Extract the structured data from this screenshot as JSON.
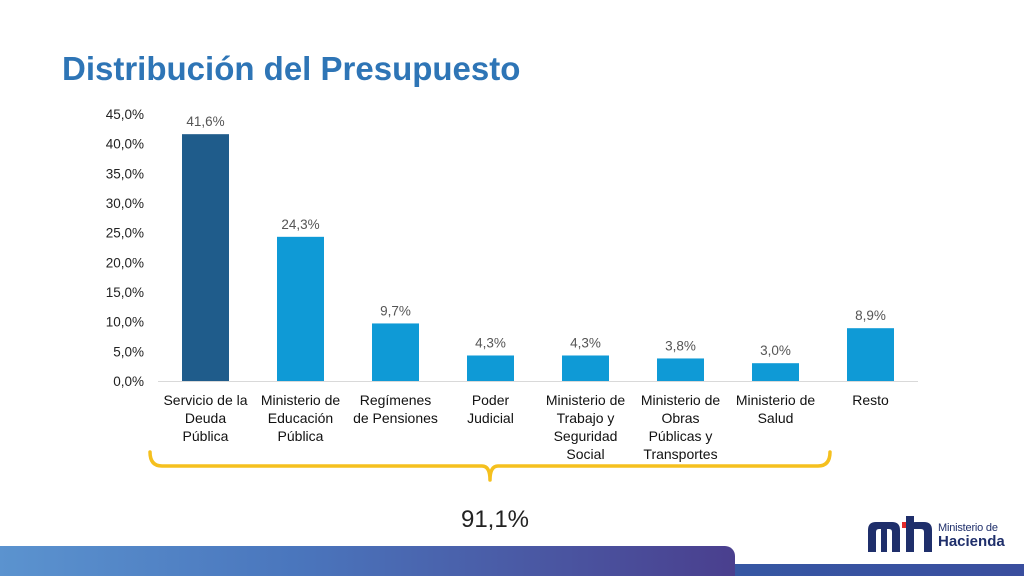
{
  "slide": {
    "title": "Distribución del Presupuesto",
    "total_label": "91,1%",
    "logo_text_top": "Ministerio de",
    "logo_text_bottom": "Hacienda"
  },
  "chart_data": {
    "type": "bar",
    "categories": [
      [
        "Servicio de la",
        "Deuda",
        "Pública"
      ],
      [
        "Ministerio de",
        "Educación",
        "Pública"
      ],
      [
        "Regímenes",
        "de Pensiones"
      ],
      [
        "Poder",
        "Judicial"
      ],
      [
        "Ministerio de",
        "Trabajo y",
        "Seguridad",
        "Social"
      ],
      [
        "Ministerio de",
        "Obras",
        "Públicas y",
        "Transportes"
      ],
      [
        "Ministerio de",
        "Salud"
      ],
      [
        "Resto"
      ]
    ],
    "values": [
      41.6,
      24.3,
      9.7,
      4.3,
      4.3,
      3.8,
      3.0,
      8.9
    ],
    "data_labels": [
      "41,6%",
      "24,3%",
      "9,7%",
      "4,3%",
      "4,3%",
      "3,8%",
      "3,0%",
      "8,9%"
    ],
    "y_ticks": [
      "0,0%",
      "5,0%",
      "10,0%",
      "15,0%",
      "20,0%",
      "25,0%",
      "30,0%",
      "35,0%",
      "40,0%",
      "45,0%"
    ],
    "ylim": [
      0,
      45
    ],
    "grid": false,
    "colors": {
      "highlight": "#1f5c8b",
      "bar": "#0f9ad6",
      "bracket": "#f5c01e",
      "title": "#2e75b6"
    },
    "highlight_index": 0
  }
}
